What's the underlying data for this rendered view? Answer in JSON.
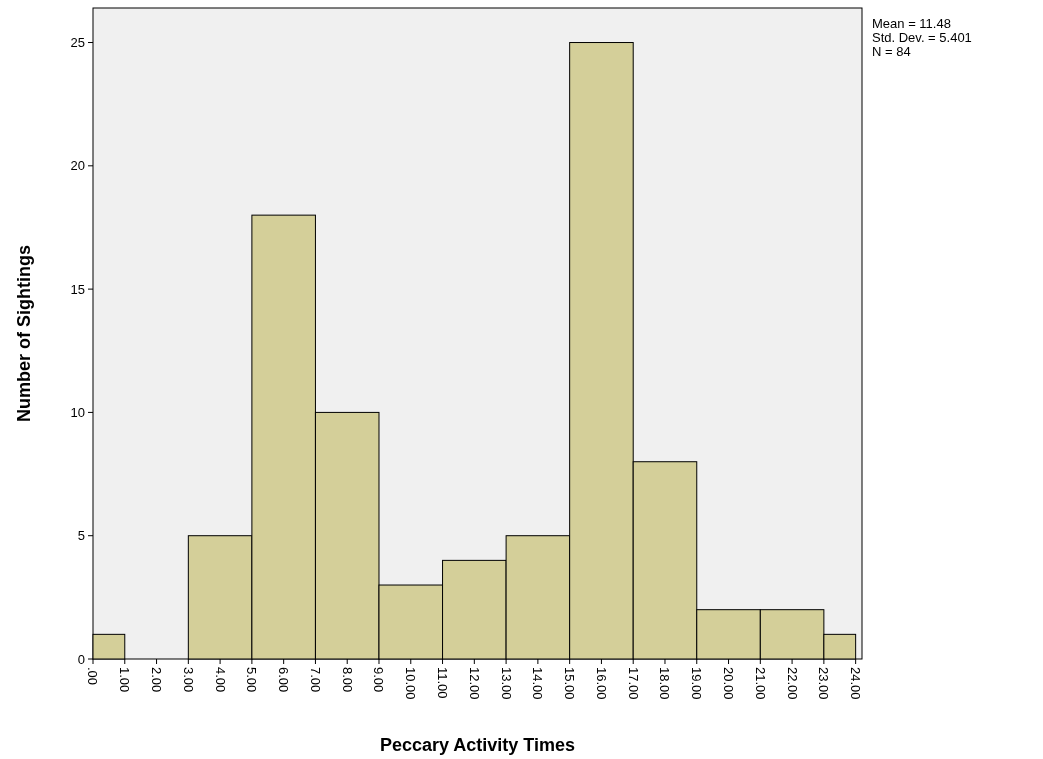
{
  "chart_data": {
    "type": "histogram",
    "xlabel": "Peccary Activity Times",
    "ylabel": "Number of Sightings",
    "bins": [
      0,
      1,
      3,
      5,
      7,
      9,
      11,
      13,
      15,
      17,
      19,
      21,
      23,
      24
    ],
    "values": [
      1,
      0,
      5,
      18,
      10,
      3,
      4,
      5,
      25,
      8,
      2,
      2,
      1
    ],
    "color": "#d4cf99",
    "xlim": [
      0,
      24.2
    ],
    "ylim": [
      0,
      26.4
    ],
    "xticks": [
      {
        "value": 0,
        "label": ".00"
      },
      {
        "value": 1,
        "label": "1.00"
      },
      {
        "value": 2,
        "label": "2.00"
      },
      {
        "value": 3,
        "label": "3.00"
      },
      {
        "value": 4,
        "label": "4.00"
      },
      {
        "value": 5,
        "label": "5.00"
      },
      {
        "value": 6,
        "label": "6.00"
      },
      {
        "value": 7,
        "label": "7.00"
      },
      {
        "value": 8,
        "label": "8.00"
      },
      {
        "value": 9,
        "label": "9.00"
      },
      {
        "value": 10,
        "label": "10.00"
      },
      {
        "value": 11,
        "label": "11.00"
      },
      {
        "value": 12,
        "label": "12.00"
      },
      {
        "value": 13,
        "label": "13.00"
      },
      {
        "value": 14,
        "label": "14.00"
      },
      {
        "value": 15,
        "label": "15.00"
      },
      {
        "value": 16,
        "label": "16.00"
      },
      {
        "value": 17,
        "label": "17.00"
      },
      {
        "value": 18,
        "label": "18.00"
      },
      {
        "value": 19,
        "label": "19.00"
      },
      {
        "value": 20,
        "label": "20.00"
      },
      {
        "value": 21,
        "label": "21.00"
      },
      {
        "value": 22,
        "label": "22.00"
      },
      {
        "value": 23,
        "label": "23.00"
      },
      {
        "value": 24,
        "label": "24.00"
      }
    ],
    "yticks": [
      0,
      5,
      10,
      15,
      20,
      25
    ],
    "annotations": [
      "Mean = 11.48",
      "Std. Dev. = 5.401",
      "N = 84"
    ]
  }
}
